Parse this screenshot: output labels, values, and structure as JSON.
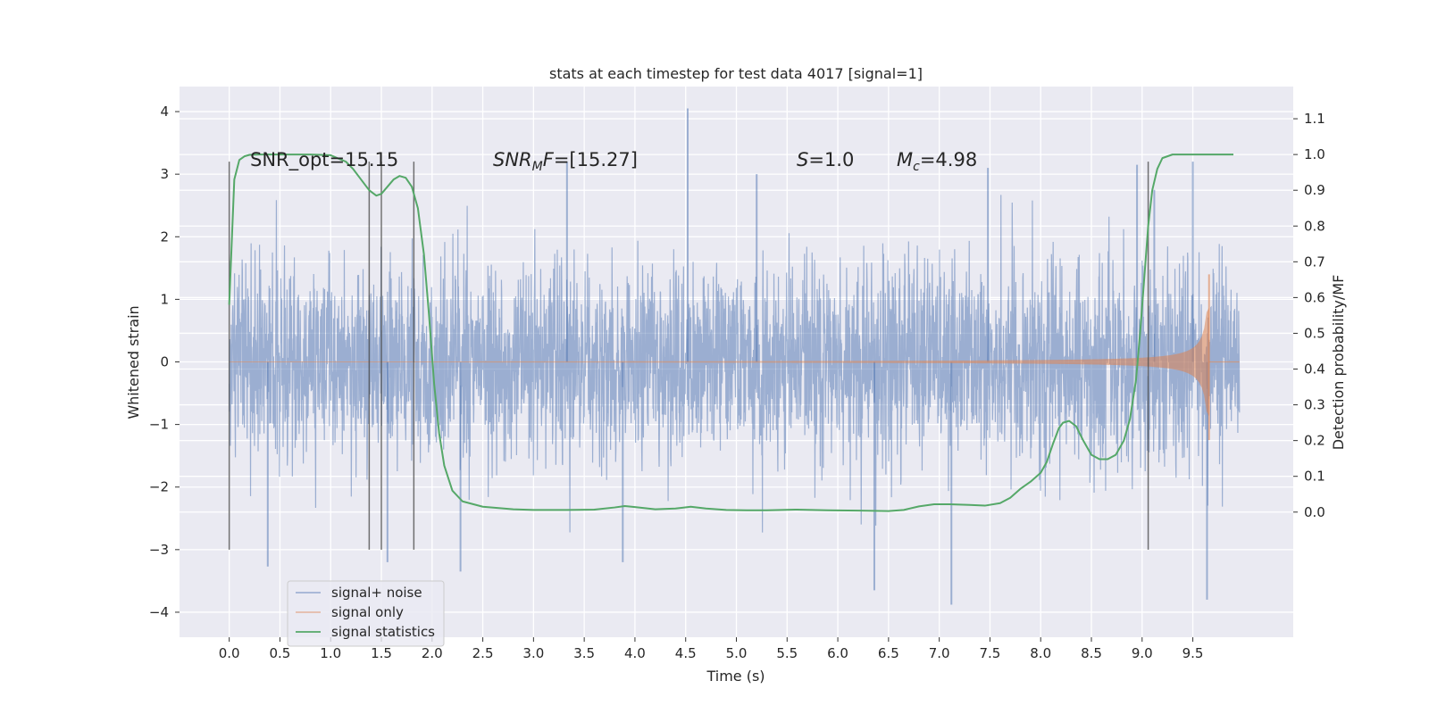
{
  "chart_data": {
    "type": "line",
    "title": "stats at each timestep for test data 4017 [signal=1]",
    "xlabel": "Time (s)",
    "ylabel": "Whitened strain",
    "ylabel_right": "Detection probability/MF",
    "xlim": [
      -0.49,
      10.49
    ],
    "ylim": [
      -4.4,
      4.4
    ],
    "ylim_right": [
      -0.35,
      1.19
    ],
    "xticks": [
      0.0,
      0.5,
      1.0,
      1.5,
      2.0,
      2.5,
      3.0,
      3.5,
      4.0,
      4.5,
      5.0,
      5.5,
      6.0,
      6.5,
      7.0,
      7.5,
      8.0,
      8.5,
      9.0,
      9.5
    ],
    "xtick_labels": [
      "0.0",
      "0.5",
      "1.0",
      "1.5",
      "2.0",
      "2.5",
      "3.0",
      "3.5",
      "4.0",
      "4.5",
      "5.0",
      "5.5",
      "6.0",
      "6.5",
      "7.0",
      "7.5",
      "8.0",
      "8.5",
      "9.0",
      "9.5"
    ],
    "yticks": [
      -4,
      -3,
      -2,
      -1,
      0,
      1,
      2,
      3,
      4
    ],
    "ytick_labels": [
      "−4",
      "−3",
      "−2",
      "−1",
      "0",
      "1",
      "2",
      "3",
      "4"
    ],
    "yticks_right": [
      0.0,
      0.1,
      0.2,
      0.3,
      0.4,
      0.5,
      0.6,
      0.7,
      0.8,
      0.9,
      1.0,
      1.1
    ],
    "ytick_labels_right": [
      "0.0",
      "0.1",
      "0.2",
      "0.3",
      "0.4",
      "0.5",
      "0.6",
      "0.7",
      "0.8",
      "0.9",
      "1.0",
      "1.1"
    ],
    "grid": true,
    "legend_position": "lower-left",
    "annotations": [
      {
        "text": "SNR_opt=15.15",
        "x": 0.2,
        "y": 3.2
      },
      {
        "text": "SNRMF=[15.27]",
        "x": 2.6,
        "y": 3.2
      },
      {
        "text": "S=1.0",
        "x": 5.6,
        "y": 3.2
      },
      {
        "text": "Mc=4.98",
        "x": 6.6,
        "y": 3.2
      }
    ],
    "vertical_markers": [
      0.0,
      1.38,
      1.5,
      1.82,
      9.06
    ],
    "marker_ymin": -3.0,
    "marker_ymax": 3.2,
    "series": [
      {
        "name": "signal+ noise",
        "color": "#4c72b0",
        "style": "noise",
        "t_start": 0.0,
        "t_end": 9.96,
        "std": 1.0,
        "spikes": [
          [
            4.52,
            4.05
          ],
          [
            0.38,
            -3.27
          ],
          [
            7.12,
            -3.88
          ],
          [
            9.64,
            -3.8
          ],
          [
            6.36,
            -3.65
          ],
          [
            3.88,
            -3.2
          ],
          [
            2.28,
            -3.35
          ],
          [
            1.56,
            -3.2
          ],
          [
            3.33,
            3.2
          ],
          [
            8.95,
            3.15
          ],
          [
            9.12,
            2.75
          ],
          [
            9.5,
            3.2
          ],
          [
            5.2,
            3.0
          ],
          [
            7.48,
            3.1
          ]
        ]
      },
      {
        "name": "signal only",
        "color": "#dd8452",
        "style": "chirp",
        "t_start": 0.0,
        "t_end": 9.66,
        "amp_start": 0.01,
        "amp_end": 1.4
      },
      {
        "name": "signal statistics",
        "color": "#55a868",
        "style": "line",
        "t": [
          0.0,
          0.05,
          0.1,
          0.15,
          0.2,
          0.3,
          0.5,
          0.8,
          1.0,
          1.15,
          1.22,
          1.3,
          1.38,
          1.45,
          1.5,
          1.56,
          1.62,
          1.68,
          1.74,
          1.8,
          1.86,
          1.92,
          1.97,
          2.02,
          2.07,
          2.12,
          2.2,
          2.3,
          2.5,
          2.8,
          3.0,
          3.3,
          3.6,
          3.8,
          3.9,
          4.0,
          4.2,
          4.4,
          4.55,
          4.7,
          4.9,
          5.1,
          5.3,
          5.6,
          5.9,
          6.2,
          6.5,
          6.65,
          6.8,
          6.95,
          7.1,
          7.3,
          7.45,
          7.6,
          7.7,
          7.8,
          7.9,
          8.0,
          8.06,
          8.12,
          8.18,
          8.22,
          8.28,
          8.35,
          8.42,
          8.5,
          8.58,
          8.66,
          8.74,
          8.82,
          8.88,
          8.94,
          8.98,
          9.02,
          9.06,
          9.1,
          9.15,
          9.2,
          9.3,
          9.5,
          9.7,
          9.9
        ],
        "p": [
          0.58,
          0.93,
          0.985,
          0.995,
          0.999,
          1.0,
          1.0,
          1.0,
          0.998,
          0.98,
          0.96,
          0.93,
          0.9,
          0.885,
          0.89,
          0.91,
          0.93,
          0.94,
          0.935,
          0.91,
          0.85,
          0.72,
          0.55,
          0.36,
          0.22,
          0.13,
          0.06,
          0.03,
          0.015,
          0.008,
          0.006,
          0.006,
          0.007,
          0.013,
          0.017,
          0.014,
          0.008,
          0.01,
          0.015,
          0.01,
          0.006,
          0.005,
          0.005,
          0.007,
          0.005,
          0.004,
          0.003,
          0.006,
          0.016,
          0.022,
          0.022,
          0.02,
          0.018,
          0.025,
          0.04,
          0.065,
          0.085,
          0.11,
          0.14,
          0.19,
          0.235,
          0.25,
          0.255,
          0.24,
          0.2,
          0.16,
          0.148,
          0.148,
          0.16,
          0.2,
          0.26,
          0.37,
          0.5,
          0.65,
          0.8,
          0.9,
          0.96,
          0.99,
          1.0,
          1.0,
          1.0,
          1.0
        ]
      }
    ]
  }
}
